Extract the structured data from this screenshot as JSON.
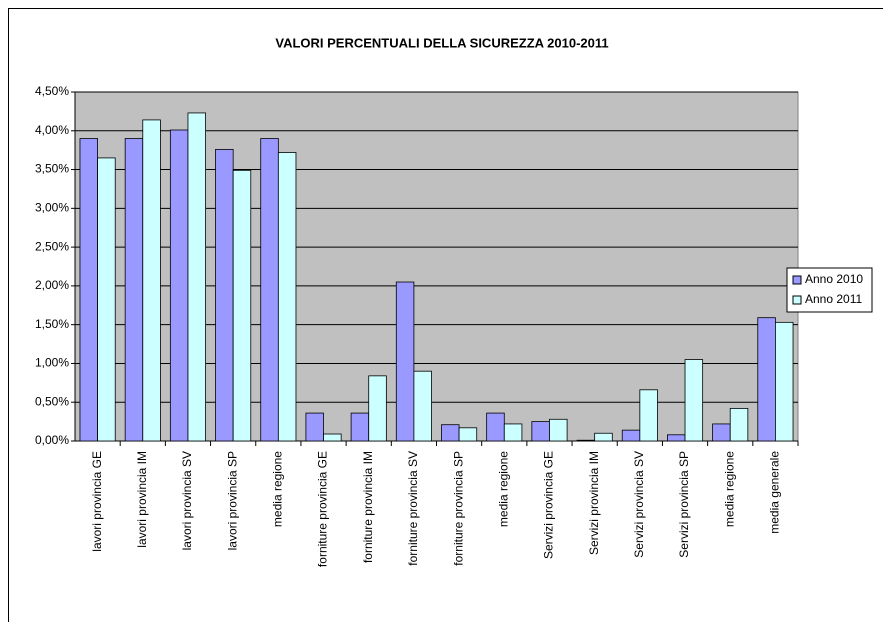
{
  "chart_data": {
    "type": "bar",
    "title": "VALORI PERCENTUALI DELLA SICUREZZA 2010-2011",
    "categories": [
      "lavori provincia GE",
      "lavori provincia IM",
      "lavori provincia SV",
      "lavori provincia SP",
      "media  regione",
      "forniture provincia GE",
      "forniture provincia IM",
      "forniture provincia SV",
      "forniture provincia SP",
      "media  regione",
      "Servizi  provincia GE",
      "Servizi provincia IM",
      "Servizi provincia SV",
      "Servizi provincia SP",
      "media  regione",
      "media generale"
    ],
    "series": [
      {
        "name": "Anno 2010",
        "color": "#9999ff",
        "values": [
          3.9,
          3.9,
          4.01,
          3.76,
          3.9,
          0.36,
          0.36,
          2.05,
          0.21,
          0.36,
          0.25,
          0.01,
          0.14,
          0.08,
          0.22,
          1.59
        ]
      },
      {
        "name": "Anno 2011",
        "color": "#ccffff",
        "values": [
          3.65,
          4.14,
          4.23,
          3.49,
          3.72,
          0.09,
          0.84,
          0.9,
          0.17,
          0.22,
          0.28,
          0.1,
          0.66,
          1.05,
          0.42,
          1.53
        ]
      }
    ],
    "ylim": [
      0,
      4.5
    ],
    "yticks": [
      {
        "value": 0,
        "label": "0,00%"
      },
      {
        "value": 0.5,
        "label": "0,50%"
      },
      {
        "value": 1,
        "label": "1,00%"
      },
      {
        "value": 1.5,
        "label": "1,50%"
      },
      {
        "value": 2,
        "label": "2,00%"
      },
      {
        "value": 2.5,
        "label": "2,50%"
      },
      {
        "value": 3,
        "label": "3,00%"
      },
      {
        "value": 3.5,
        "label": "3,50%"
      },
      {
        "value": 4,
        "label": "4,00%"
      },
      {
        "value": 4.5,
        "label": "4,50%"
      }
    ],
    "grid": true,
    "legend": "right",
    "plot_background": "#c0c0c0"
  }
}
